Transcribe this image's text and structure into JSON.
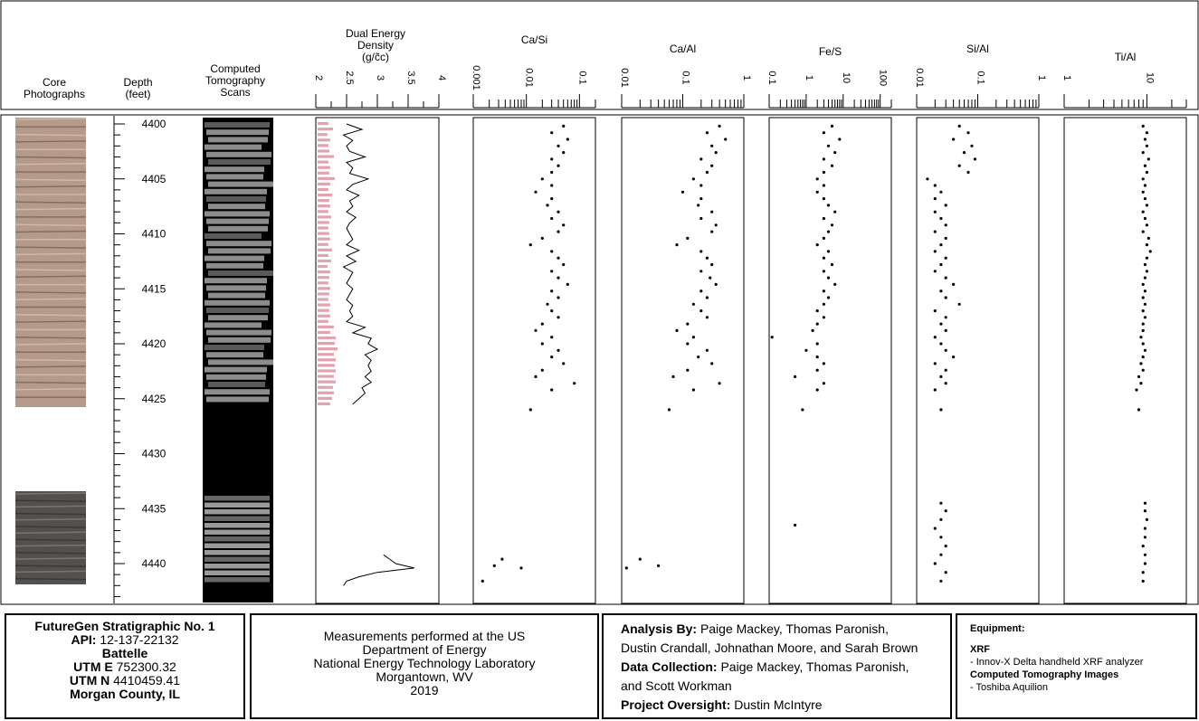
{
  "columns": {
    "core_photographs": "Core\nPhotographs",
    "depth": "Depth\n(feet)",
    "ct_scans": "Computed\nTomography\nScans",
    "density": "Dual Energy\nDensity\n(g/c̃c)"
  },
  "chart_data": [
    {
      "type": "line",
      "name": "density",
      "title": "Dual Energy Density (g/c̃c)",
      "xlim": [
        2,
        4
      ],
      "xticks": [
        "2",
        "2.5",
        "3",
        "3.5",
        "4"
      ],
      "ylim": [
        4399.7,
        4443.5
      ],
      "yticks": [
        "4400",
        "4405",
        "4410",
        "4415",
        "4420",
        "4425",
        "4430",
        "4435",
        "4440"
      ],
      "series": [
        {
          "values_note": "density by depth",
          "depth": [
            4400,
            4400.5,
            4401,
            4401.5,
            4402,
            4402.5,
            4403,
            4403.5,
            4404,
            4404.5,
            4405,
            4405.5,
            4406,
            4406.5,
            4407,
            4407.5,
            4408,
            4408.5,
            4409,
            4409.5,
            4410,
            4410.5,
            4411,
            4411.5,
            4412,
            4412.5,
            4413,
            4413.5,
            4414,
            4414.5,
            4415,
            4415.5,
            4416,
            4416.5,
            4417,
            4417.5,
            4418,
            4418.5,
            4419,
            4419.5,
            4420,
            4420.5,
            4421,
            4421.5,
            4422,
            4422.5,
            4423,
            4423.5,
            4424,
            4424.5,
            4425,
            4425.5,
            4439.2,
            4439.6,
            4440,
            4440.4,
            4440.8,
            4441.2,
            4441.6,
            4442
          ],
          "values": [
            2.5,
            2.75,
            2.45,
            2.6,
            2.5,
            2.55,
            2.8,
            2.5,
            2.6,
            2.55,
            2.85,
            2.6,
            2.5,
            2.7,
            2.55,
            2.6,
            2.5,
            2.65,
            2.55,
            2.5,
            2.55,
            2.6,
            2.5,
            2.7,
            2.5,
            2.65,
            2.45,
            2.6,
            2.55,
            2.5,
            2.6,
            2.55,
            2.5,
            2.6,
            2.55,
            2.6,
            2.5,
            2.8,
            2.6,
            2.9,
            2.85,
            3.0,
            2.8,
            2.9,
            2.85,
            2.9,
            2.8,
            2.9,
            2.75,
            2.8,
            2.7,
            2.6,
            3.1,
            3.2,
            3.3,
            3.6,
            3.0,
            2.7,
            2.5,
            2.45
          ]
        }
      ]
    },
    {
      "type": "scatter",
      "name": "ca-si",
      "title": "Ca/Si",
      "xscale": "log",
      "xlim": [
        0.001,
        0.2
      ],
      "xticks": [
        "0.001",
        "0.01",
        "0.1"
      ],
      "depth": [
        4400.2,
        4400.8,
        4401.4,
        4402.0,
        4402.6,
        4403.2,
        4403.8,
        4404.4,
        4405.0,
        4405.6,
        4406.2,
        4406.8,
        4407.4,
        4408.0,
        4408.6,
        4409.2,
        4409.8,
        4410.4,
        4411.0,
        4411.6,
        4412.2,
        4412.8,
        4413.4,
        4414.0,
        4414.6,
        4415.2,
        4415.8,
        4416.4,
        4417.0,
        4417.6,
        4418.2,
        4418.8,
        4419.4,
        4420.0,
        4420.6,
        4421.2,
        4421.8,
        4422.4,
        4423.0,
        4423.6,
        4424.2,
        4426.0,
        4439.6,
        4440.2,
        4440.4,
        4441.6
      ],
      "values": [
        0.05,
        0.03,
        0.06,
        0.04,
        0.05,
        0.03,
        0.04,
        0.03,
        0.02,
        0.03,
        0.015,
        0.03,
        0.025,
        0.04,
        0.03,
        0.05,
        0.04,
        0.02,
        0.012,
        0.03,
        0.04,
        0.05,
        0.03,
        0.04,
        0.06,
        0.03,
        0.04,
        0.025,
        0.03,
        0.04,
        0.02,
        0.015,
        0.03,
        0.02,
        0.04,
        0.03,
        0.05,
        0.02,
        0.015,
        0.08,
        0.03,
        0.012,
        0.0035,
        0.0025,
        0.008,
        0.0015
      ]
    },
    {
      "type": "scatter",
      "name": "ca-al",
      "title": "Ca/Al",
      "xscale": "log",
      "xlim": [
        0.01,
        1
      ],
      "xticks": [
        "0.01",
        "0.1",
        "1"
      ],
      "depth": [
        4400.2,
        4400.8,
        4401.4,
        4402.0,
        4402.6,
        4403.2,
        4403.8,
        4404.4,
        4405.0,
        4405.6,
        4406.2,
        4406.8,
        4407.4,
        4408.0,
        4408.6,
        4409.2,
        4409.8,
        4410.4,
        4411.0,
        4411.6,
        4412.2,
        4412.8,
        4413.4,
        4414.0,
        4414.6,
        4415.2,
        4415.8,
        4416.4,
        4417.0,
        4417.6,
        4418.2,
        4418.8,
        4419.4,
        4420.0,
        4420.6,
        4421.2,
        4421.8,
        4422.4,
        4423.0,
        4423.6,
        4424.2,
        4426.0,
        4439.6,
        4440.2,
        4440.4
      ],
      "values": [
        0.4,
        0.25,
        0.5,
        0.3,
        0.35,
        0.2,
        0.3,
        0.25,
        0.15,
        0.2,
        0.1,
        0.2,
        0.18,
        0.3,
        0.2,
        0.35,
        0.3,
        0.12,
        0.08,
        0.2,
        0.25,
        0.3,
        0.2,
        0.28,
        0.35,
        0.2,
        0.25,
        0.15,
        0.2,
        0.25,
        0.12,
        0.08,
        0.15,
        0.12,
        0.25,
        0.18,
        0.3,
        0.12,
        0.07,
        0.4,
        0.15,
        0.06,
        0.02,
        0.04,
        0.012
      ]
    },
    {
      "type": "scatter",
      "name": "fe-s",
      "title": "Fe/S",
      "xscale": "log",
      "xlim": [
        0.1,
        200
      ],
      "xticks": [
        "0.1",
        "1",
        "10",
        "100"
      ],
      "depth": [
        4400.2,
        4400.8,
        4401.4,
        4402.0,
        4402.6,
        4403.2,
        4403.8,
        4404.4,
        4405.0,
        4405.6,
        4406.2,
        4406.8,
        4407.4,
        4408.0,
        4408.6,
        4409.2,
        4409.8,
        4410.4,
        4411.0,
        4411.6,
        4412.2,
        4412.8,
        4413.4,
        4414.0,
        4414.6,
        4415.2,
        4415.8,
        4416.4,
        4417.0,
        4417.6,
        4418.2,
        4418.8,
        4419.4,
        4420.0,
        4420.6,
        4421.2,
        4421.8,
        4422.4,
        4423.0,
        4423.6,
        4424.2,
        4426.0,
        4436.5
      ],
      "values": [
        5,
        3,
        8,
        4,
        6,
        3,
        5,
        3,
        2,
        3,
        2,
        3,
        4,
        6,
        3,
        5,
        4,
        3,
        2,
        4,
        3,
        5,
        3,
        4,
        6,
        3,
        4,
        3,
        2,
        3,
        2,
        1.5,
        0.12,
        2,
        1,
        2,
        3,
        2,
        0.5,
        3,
        2,
        0.8,
        0.5
      ]
    },
    {
      "type": "scatter",
      "name": "si-al",
      "title": "Si/Al",
      "xscale": "log",
      "xlim": [
        0.01,
        1
      ],
      "xticks": [
        "0.01",
        "0.1",
        "1"
      ],
      "depth": [
        4400.2,
        4400.8,
        4401.4,
        4402.0,
        4402.6,
        4403.2,
        4403.8,
        4404.4,
        4405.0,
        4405.6,
        4406.2,
        4406.8,
        4407.4,
        4408.0,
        4408.6,
        4409.2,
        4409.8,
        4410.4,
        4411.0,
        4411.6,
        4412.2,
        4412.8,
        4413.4,
        4414.0,
        4414.6,
        4415.2,
        4415.8,
        4416.4,
        4417.0,
        4417.6,
        4418.2,
        4418.8,
        4419.4,
        4420.0,
        4420.6,
        4421.2,
        4421.8,
        4422.4,
        4423.0,
        4423.6,
        4424.2,
        4426.0,
        4434.5,
        4435.2,
        4436.0,
        4436.8,
        4437.6,
        4438.4,
        4439.2,
        4440.0,
        4440.8,
        4441.6
      ],
      "values": [
        0.05,
        0.07,
        0.04,
        0.08,
        0.06,
        0.09,
        0.05,
        0.07,
        0.015,
        0.02,
        0.025,
        0.02,
        0.03,
        0.02,
        0.025,
        0.03,
        0.02,
        0.03,
        0.025,
        0.02,
        0.03,
        0.025,
        0.02,
        0.03,
        0.04,
        0.025,
        0.03,
        0.05,
        0.02,
        0.03,
        0.025,
        0.03,
        0.02,
        0.025,
        0.03,
        0.04,
        0.02,
        0.03,
        0.025,
        0.03,
        0.02,
        0.025,
        0.025,
        0.03,
        0.025,
        0.02,
        0.025,
        0.03,
        0.025,
        0.02,
        0.03,
        0.025
      ]
    },
    {
      "type": "scatter",
      "name": "ti-al",
      "title": "Ti/Al",
      "xscale": "log",
      "xlim": [
        1,
        30
      ],
      "xticks": [
        "1",
        "10"
      ],
      "depth": [
        4400.2,
        4400.8,
        4401.4,
        4402.0,
        4402.6,
        4403.2,
        4403.8,
        4404.4,
        4405.0,
        4405.6,
        4406.2,
        4406.8,
        4407.4,
        4408.0,
        4408.6,
        4409.2,
        4409.8,
        4410.4,
        4411.0,
        4411.6,
        4412.2,
        4412.8,
        4413.4,
        4414.0,
        4414.6,
        4415.2,
        4415.8,
        4416.4,
        4417.0,
        4417.6,
        4418.2,
        4418.8,
        4419.4,
        4420.0,
        4420.6,
        4421.2,
        4421.8,
        4422.4,
        4423.0,
        4423.6,
        4424.2,
        4426.0,
        4434.5,
        4435.2,
        4436.0,
        4436.8,
        4437.6,
        4438.4,
        4439.2,
        4440.0,
        4440.8,
        4441.6
      ],
      "values": [
        9,
        10,
        9.5,
        10,
        9,
        10.5,
        9.5,
        10,
        9,
        9.5,
        9,
        9.5,
        10,
        9,
        9.5,
        10,
        9,
        10.5,
        10,
        11,
        10,
        9.5,
        10,
        9.5,
        9,
        9.5,
        9,
        9.5,
        9,
        9.5,
        9,
        9,
        8.5,
        9,
        9.5,
        9,
        8.5,
        9,
        8,
        8.5,
        7.5,
        8,
        9.5,
        9.5,
        10,
        9.5,
        9.5,
        9,
        9.5,
        9.5,
        9,
        9
      ]
    }
  ],
  "info": {
    "box1": {
      "title": "FutureGen Stratigraphic No. 1",
      "api_label": "API:",
      "api": "12-137-22132",
      "operator": "Battelle",
      "utm_e_label": "UTM E",
      "utm_e": "752300.32",
      "utm_n_label": "UTM N",
      "utm_n": "4410459.41",
      "county": "Morgan County, IL"
    },
    "box2": {
      "line1": "Measurements performed at the US",
      "line2": "Department of Energy",
      "line3": "National Energy Technology Laboratory",
      "line4": "Morgantown, WV",
      "line5": "2019"
    },
    "box3": {
      "analysis_label": "Analysis By:",
      "analysis_line1": "Paige Mackey, Thomas Paronish,",
      "analysis_line2": "Dustin Crandall, Johnathan Moore, and Sarah Brown",
      "collection_label": "Data Collection:",
      "collection_line1": "Paige Mackey, Thomas Paronish,",
      "collection_line2": "and Scott Workman",
      "oversight_label": "Project Oversight:",
      "oversight": "Dustin McIntyre"
    },
    "box4": {
      "heading": "Equipment:",
      "xrf_label": "XRF",
      "xrf": " - Innov-X Delta handheld XRF analyzer",
      "ct_label": "Computed Tomography Images",
      "ct": " - Toshiba Aquilion"
    }
  },
  "colors": {
    "density_fill": "#d98c98",
    "core_light": "#b59a8a",
    "core_dark": "#555050",
    "ct_bg": "#000000"
  }
}
